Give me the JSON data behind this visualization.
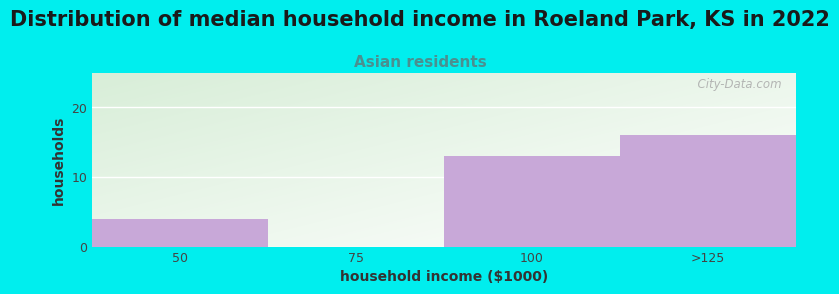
{
  "title": "Distribution of median household income in Roeland Park, KS in 2022",
  "subtitle": "Asian residents",
  "xlabel": "household income ($1000)",
  "ylabel": "households",
  "categories": [
    "50",
    "75",
    "100",
    ">125"
  ],
  "values": [
    4,
    0,
    13,
    16
  ],
  "bar_color": "#c8a8d8",
  "background_color": "#00eeee",
  "plot_bg_color_topleft": "#d8eed8",
  "plot_bg_color_bottomright": "#ffffff",
  "ylim": [
    0,
    25
  ],
  "yticks": [
    0,
    10,
    20
  ],
  "title_fontsize": 15,
  "subtitle_fontsize": 11,
  "subtitle_color": "#4a9090",
  "axis_label_fontsize": 10,
  "tick_fontsize": 9,
  "watermark": "  City-Data.com"
}
